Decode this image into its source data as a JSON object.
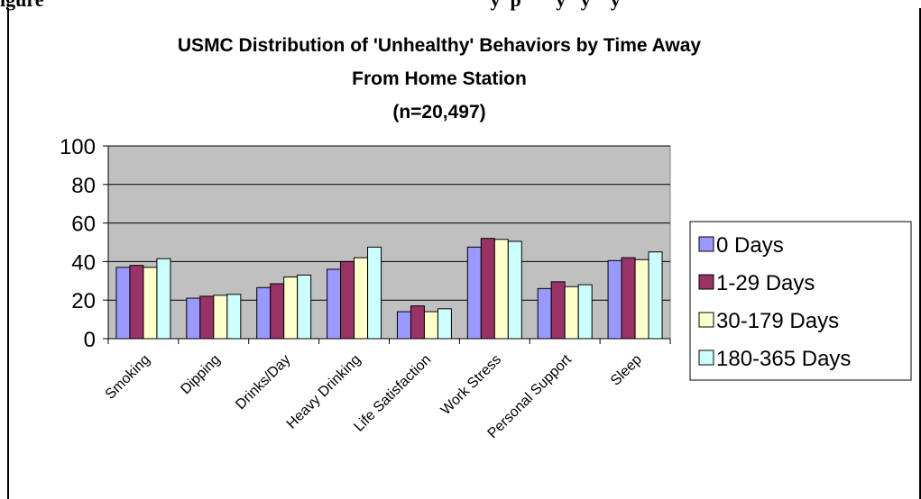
{
  "page": {
    "caption_fragment": "igure                                                                                          y  p       y   y    y"
  },
  "chart_data": {
    "type": "bar",
    "title_lines": [
      "USMC Distribution of 'Unhealthy' Behaviors by Time Away",
      "From Home Station",
      "(n=20,497)"
    ],
    "xlabel": "",
    "ylabel": "",
    "ylim": [
      0,
      100
    ],
    "yticks": [
      "0",
      "20",
      "40",
      "60",
      "80",
      "100"
    ],
    "grid": true,
    "legend_position": "right",
    "plot_background": "#c0c0c0",
    "categories": [
      "Smoking",
      "Dipping",
      "Drinks/Day",
      "Heavy Drinking",
      "Life Satisfaction",
      "Work Stress",
      "Personal Support",
      "Sleep"
    ],
    "series": [
      {
        "name": "0 Days",
        "color": "#9999ff",
        "values": [
          37,
          21,
          26.5,
          36,
          14,
          47.5,
          26,
          40.5
        ]
      },
      {
        "name": "1-29 Days",
        "color": "#993366",
        "values": [
          38,
          22,
          28.5,
          40,
          17,
          52,
          29.5,
          42
        ]
      },
      {
        "name": "30-179 Days",
        "color": "#ffffcc",
        "values": [
          37,
          22.5,
          32,
          42,
          14,
          51.5,
          27,
          41
        ]
      },
      {
        "name": "180-365 Days",
        "color": "#ccffff",
        "values": [
          41.5,
          23,
          33,
          47.5,
          15.5,
          50.5,
          28,
          45
        ]
      }
    ]
  }
}
